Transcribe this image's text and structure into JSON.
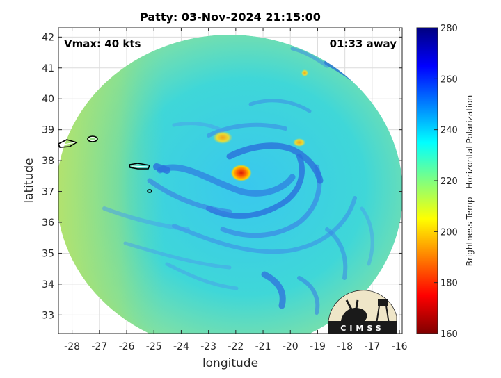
{
  "map": {
    "title": "Patty: 03-Nov-2024 21:15:00",
    "xlabel": "longitude",
    "ylabel": "latitude",
    "vmax_label": "Vmax: 40 kts",
    "time_away_label": "01:33 away",
    "x_ticks": [
      "-28",
      "-27",
      "-26",
      "-25",
      "-24",
      "-23",
      "-22",
      "-21",
      "-20",
      "-19",
      "-18",
      "-17",
      "-16"
    ],
    "y_ticks": [
      "42",
      "41",
      "40",
      "39",
      "38",
      "37",
      "36",
      "35",
      "34",
      "33"
    ],
    "lon_range": [
      -28.5,
      -15.9
    ],
    "lat_range": [
      32.4,
      42.3
    ],
    "grid": true,
    "storm_center": {
      "lon": -21.8,
      "lat": 37.6
    },
    "islands": [
      {
        "name": "Flores/Corvo",
        "lon": -28.1,
        "lat": 38.5
      },
      {
        "name": "Graciosa",
        "lon": -27.8,
        "lat": 38.6
      },
      {
        "name": "Sao Miguel",
        "lon": -25.4,
        "lat": 37.8
      },
      {
        "name": "Santa Maria",
        "lon": -25.1,
        "lat": 36.9
      }
    ]
  },
  "colorbar": {
    "label": "Brightness Temp - Horizontal Polarization",
    "ticks": [
      "280",
      "260",
      "240",
      "220",
      "200",
      "180",
      "160"
    ],
    "range": [
      160,
      280
    ],
    "stops": [
      "#800000",
      "#ff0000",
      "#ff8000",
      "#ffff00",
      "#80ff80",
      "#00ffff",
      "#0080ff",
      "#0000ff",
      "#000080"
    ]
  },
  "logo": {
    "text": "CIMSS"
  }
}
